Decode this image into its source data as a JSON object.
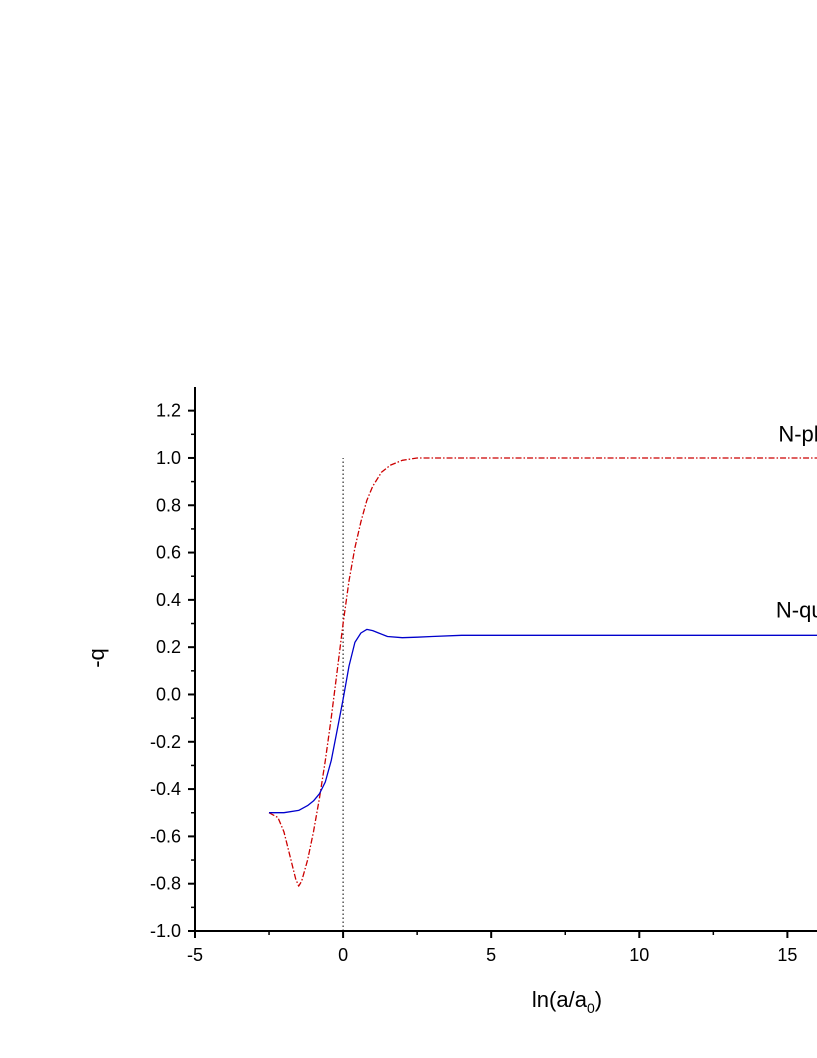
{
  "chart_data": {
    "type": "line",
    "title": "",
    "xlabel_main": "ln(a/a",
    "xlabel_sub": "0",
    "xlabel_close": ")",
    "ylabel": "-q",
    "xlim": [
      -5,
      16
    ],
    "ylim": [
      -1.0,
      1.3
    ],
    "x_ticks": [
      -5,
      0,
      5,
      10,
      15
    ],
    "x_tick_labels": [
      "-5",
      "0",
      "5",
      "10",
      "15"
    ],
    "y_ticks": [
      -1.0,
      -0.8,
      -0.6,
      -0.4,
      -0.2,
      0.0,
      0.2,
      0.4,
      0.6,
      0.8,
      1.0,
      1.2
    ],
    "y_tick_labels": [
      "-1.0",
      "-0.8",
      "-0.6",
      "-0.4",
      "-0.2",
      "0.0",
      "0.2",
      "0.4",
      "0.6",
      "0.8",
      "1.0",
      "1.2"
    ],
    "grid": false,
    "reference_line": {
      "x": 0,
      "y_range": [
        -1.0,
        1.0
      ],
      "style": "dotted",
      "color": "#000000"
    },
    "series": [
      {
        "name": "N-ph",
        "color": "#cc0000",
        "style": "dash-dot",
        "label_at": {
          "x": 15.5,
          "y": 1.07
        },
        "x": [
          -2.5,
          -2.2,
          -2.0,
          -1.8,
          -1.6,
          -1.5,
          -1.4,
          -1.2,
          -1.0,
          -0.8,
          -0.6,
          -0.4,
          -0.2,
          0.0,
          0.2,
          0.4,
          0.6,
          0.8,
          1.0,
          1.3,
          1.6,
          2.0,
          2.5,
          3.0,
          4.0,
          6.0,
          10.0,
          16.0
        ],
        "y": [
          -0.5,
          -0.52,
          -0.58,
          -0.68,
          -0.78,
          -0.81,
          -0.79,
          -0.7,
          -0.58,
          -0.44,
          -0.28,
          -0.1,
          0.1,
          0.3,
          0.48,
          0.62,
          0.73,
          0.82,
          0.88,
          0.94,
          0.97,
          0.99,
          1.0,
          1.0,
          1.0,
          1.0,
          1.0,
          1.0
        ]
      },
      {
        "name": "N-qui",
        "color": "#0000cc",
        "style": "solid",
        "label_at": {
          "x": 15.5,
          "y": 0.325
        },
        "x": [
          -2.5,
          -2.0,
          -1.5,
          -1.2,
          -1.0,
          -0.8,
          -0.6,
          -0.4,
          -0.2,
          0.0,
          0.2,
          0.4,
          0.6,
          0.8,
          1.0,
          1.2,
          1.5,
          2.0,
          2.5,
          3.0,
          4.0,
          6.0,
          10.0,
          16.0
        ],
        "y": [
          -0.5,
          -0.5,
          -0.49,
          -0.47,
          -0.45,
          -0.42,
          -0.37,
          -0.28,
          -0.15,
          -0.02,
          0.12,
          0.22,
          0.26,
          0.275,
          0.27,
          0.26,
          0.245,
          0.24,
          0.242,
          0.245,
          0.25,
          0.25,
          0.25,
          0.25
        ]
      }
    ]
  }
}
